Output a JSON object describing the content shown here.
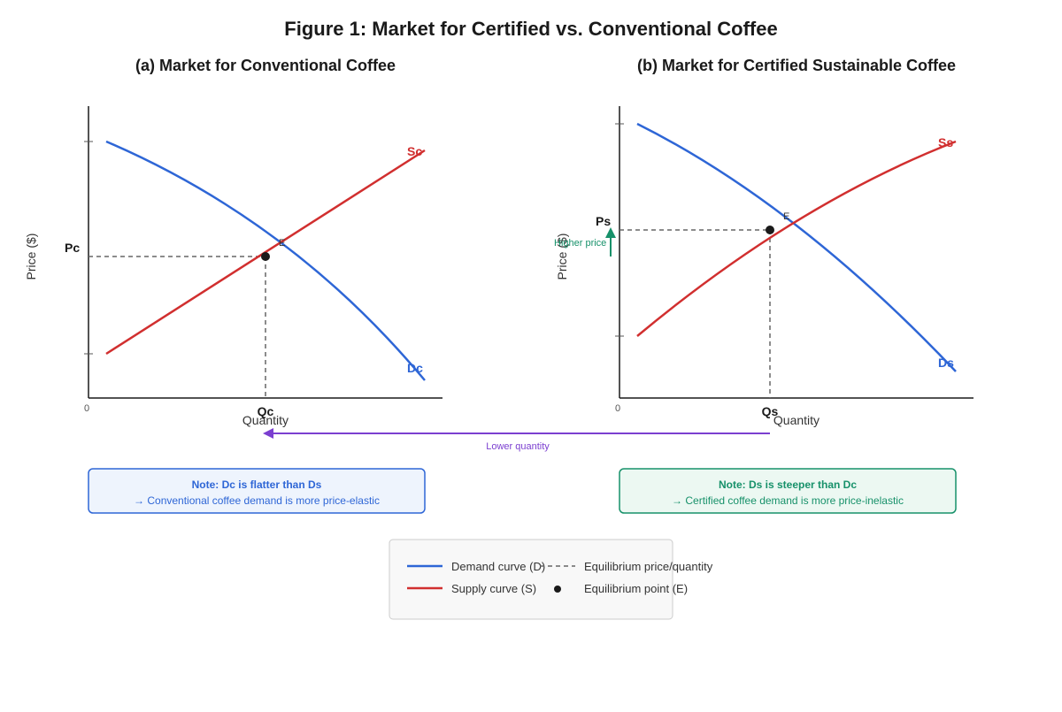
{
  "title": "Figure 1: Market for Certified vs. Conventional Coffee",
  "colors": {
    "demand": "#2e66d6",
    "supply": "#d12f2f",
    "dashed": "#666666",
    "equilibrium": "#1a1a1a",
    "higher_price": "#17916a",
    "lower_quantity": "#7b3fd0",
    "note_conv_bg": "#eef4fd",
    "note_conv_border": "#2e66d6",
    "note_cert_bg": "#ecf8f2",
    "note_cert_border": "#17916a"
  },
  "panel_a": {
    "title": "(a) Market for Conventional Coffee",
    "ylabel": "Price ($)",
    "xlabel": "Quantity",
    "origin": "0",
    "price_label": "Pc",
    "quantity_label": "Qc",
    "equilibrium_label": "E",
    "supply_label": "Sc",
    "demand_label": "Dc",
    "note_title": "Note: Dc is flatter than Ds",
    "note_body": "→ Conventional coffee demand is more price-elastic"
  },
  "panel_b": {
    "title": "(b) Market for Certified Sustainable Coffee",
    "ylabel": "Price ($)",
    "xlabel": "Quantity",
    "origin": "0",
    "price_label": "Ps",
    "quantity_label": "Qs",
    "equilibrium_label": "E",
    "supply_label": "Ss",
    "demand_label": "Ds",
    "higher_price_label": "Higher price",
    "note_title": "Note: Ds is steeper than Dc",
    "note_body": "→ Certified coffee demand is more price-inelastic"
  },
  "lower_quantity_label": "Lower quantity",
  "legend": {
    "demand": "Demand curve (D)",
    "supply": "Supply curve (S)",
    "dashed": "Equilibrium price/quantity",
    "point": "Equilibrium point (E)"
  }
}
